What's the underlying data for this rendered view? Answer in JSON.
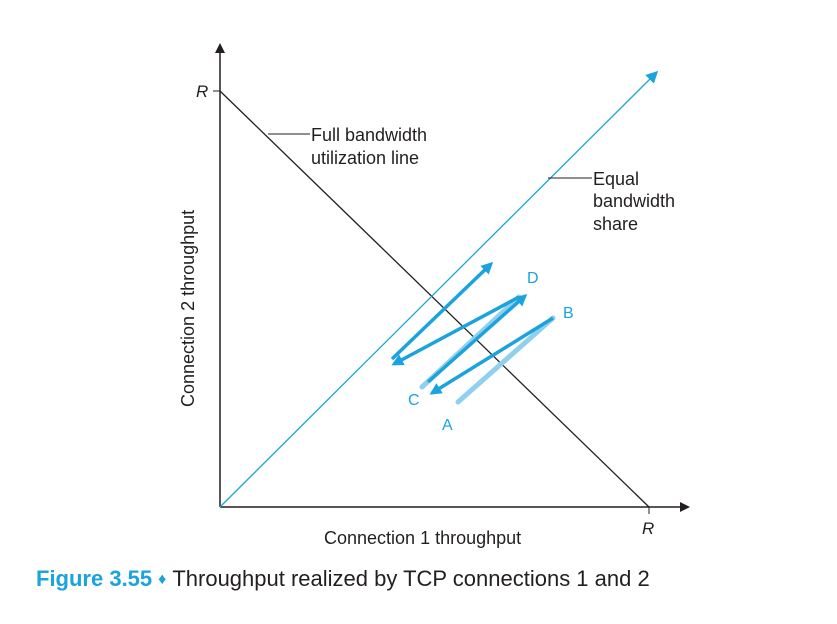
{
  "axes": {
    "x_label": "Connection 1 throughput",
    "y_label": "Connection 2 throughput",
    "x_max_label": "R",
    "y_max_label": "R"
  },
  "annotations": {
    "full_line_1": "Full bandwidth",
    "full_line_2": "utilization line",
    "equal_1": "Equal",
    "equal_2": "bandwidth",
    "equal_3": "share"
  },
  "points": {
    "A": "A",
    "B": "B",
    "C": "C",
    "D": "D"
  },
  "colors": {
    "accent": "#1ba3dd",
    "light_accent": "#8fd0ee",
    "axis": "#231f20"
  },
  "caption": {
    "figure": "Figure 3.55",
    "separator": "♦",
    "text": "Throughput realized by TCP connections 1 and 2"
  }
}
